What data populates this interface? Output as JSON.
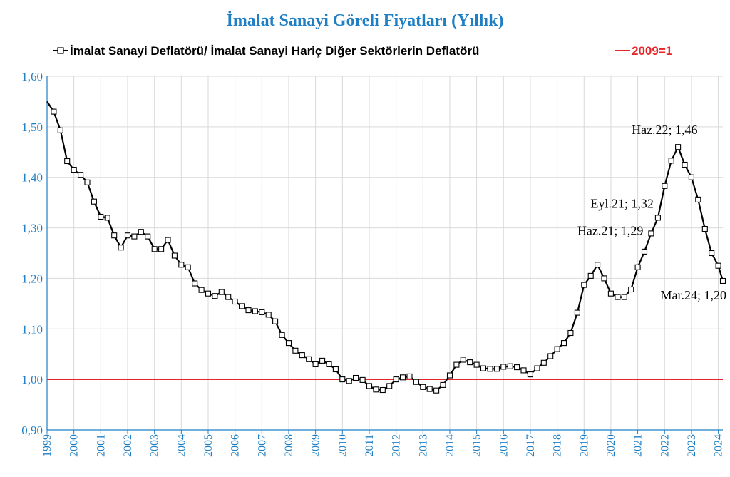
{
  "chart_data": {
    "type": "line",
    "title": "İmalat Sanayi Göreli Fiyatları (Yıllık)",
    "series": [
      {
        "name": "İmalat Sanayi Deflatörü/ İmalat Sanayi Hariç Diğer Sektörlerin Deflatörü",
        "color": "#000000",
        "marker": "square-open",
        "x": [
          1999.0,
          1999.25,
          1999.5,
          1999.75,
          2000.0,
          2000.25,
          2000.5,
          2000.75,
          2001.0,
          2001.25,
          2001.5,
          2001.75,
          2002.0,
          2002.25,
          2002.5,
          2002.75,
          2003.0,
          2003.25,
          2003.5,
          2003.75,
          2004.0,
          2004.25,
          2004.5,
          2004.75,
          2005.0,
          2005.25,
          2005.5,
          2005.75,
          2006.0,
          2006.25,
          2006.5,
          2006.75,
          2007.0,
          2007.25,
          2007.5,
          2007.75,
          2008.0,
          2008.25,
          2008.5,
          2008.75,
          2009.0,
          2009.25,
          2009.5,
          2009.75,
          2010.0,
          2010.25,
          2010.5,
          2010.75,
          2011.0,
          2011.25,
          2011.5,
          2011.75,
          2012.0,
          2012.25,
          2012.5,
          2012.75,
          2013.0,
          2013.25,
          2013.5,
          2013.75,
          2014.0,
          2014.25,
          2014.5,
          2014.75,
          2015.0,
          2015.25,
          2015.5,
          2015.75,
          2016.0,
          2016.25,
          2016.5,
          2016.75,
          2017.0,
          2017.25,
          2017.5,
          2017.75,
          2018.0,
          2018.25,
          2018.5,
          2018.75,
          2019.0,
          2019.25,
          2019.5,
          2019.75,
          2020.0,
          2020.25,
          2020.5,
          2020.75,
          2021.0,
          2021.25,
          2021.5,
          2021.75,
          2022.0,
          2022.25,
          2022.5,
          2022.75,
          2023.0,
          2023.25,
          2023.5,
          2023.75,
          2024.0,
          2024.17
        ],
        "values": [
          1.55,
          1.53,
          1.493,
          1.432,
          1.415,
          1.405,
          1.39,
          1.352,
          1.322,
          1.32,
          1.285,
          1.261,
          1.285,
          1.283,
          1.292,
          1.283,
          1.258,
          1.258,
          1.276,
          1.245,
          1.227,
          1.222,
          1.19,
          1.177,
          1.17,
          1.165,
          1.173,
          1.163,
          1.154,
          1.145,
          1.137,
          1.135,
          1.133,
          1.128,
          1.115,
          1.088,
          1.072,
          1.057,
          1.048,
          1.04,
          1.03,
          1.037,
          1.03,
          1.02,
          1.0,
          0.997,
          1.003,
          0.999,
          0.987,
          0.98,
          0.979,
          0.987,
          1.0,
          1.004,
          1.006,
          0.995,
          0.985,
          0.981,
          0.978,
          0.989,
          1.008,
          1.029,
          1.039,
          1.034,
          1.029,
          1.022,
          1.021,
          1.021,
          1.025,
          1.026,
          1.024,
          1.018,
          1.01,
          1.022,
          1.033,
          1.046,
          1.06,
          1.072,
          1.092,
          1.132,
          1.187,
          1.205,
          1.227,
          1.2,
          1.17,
          1.163,
          1.163,
          1.178,
          1.222,
          1.253,
          1.289,
          1.32,
          1.383,
          1.433,
          1.46,
          1.425,
          1.4,
          1.356,
          1.298,
          1.25,
          1.225,
          1.195
        ]
      },
      {
        "name": "2009=1",
        "color": "#e8262a",
        "reference_y": 1.0
      }
    ],
    "xlabel": "",
    "ylabel": "",
    "xlim": [
      1999,
      2024.17
    ],
    "ylim": [
      0.9,
      1.6
    ],
    "yticks": [
      "0,90",
      "1,00",
      "1,10",
      "1,20",
      "1,30",
      "1,40",
      "1,50",
      "1,60"
    ],
    "ytick_values": [
      0.9,
      1.0,
      1.1,
      1.2,
      1.3,
      1.4,
      1.5,
      1.6
    ],
    "xticks": [
      "1999",
      "2000",
      "2001",
      "2002",
      "2003",
      "2004",
      "2005",
      "2006",
      "2007",
      "2008",
      "2009",
      "2010",
      "2011",
      "2012",
      "2013",
      "2014",
      "2015",
      "2016",
      "2017",
      "2018",
      "2019",
      "2020",
      "2021",
      "2022",
      "2023",
      "2024"
    ],
    "grid": true,
    "legend_position": "top",
    "annotations": [
      {
        "text": "Haz.22; 1,46",
        "x": 2022.42,
        "y": 1.46,
        "anchor": "above"
      },
      {
        "text": "Eyl.21; 1,32",
        "x": 2021.67,
        "y": 1.32,
        "anchor": "left-above"
      },
      {
        "text": "Haz.21; 1,29",
        "x": 2021.42,
        "y": 1.29,
        "anchor": "left"
      },
      {
        "text": "Mar.24; 1,20",
        "x": 2024.17,
        "y": 1.195,
        "anchor": "below-left"
      }
    ]
  },
  "colors": {
    "title": "#1f7fc4",
    "axis_labels": "#1f7fc4",
    "grid": "#d9d9d9",
    "axis": "#1f7fc4",
    "reference": "#e8262a"
  }
}
